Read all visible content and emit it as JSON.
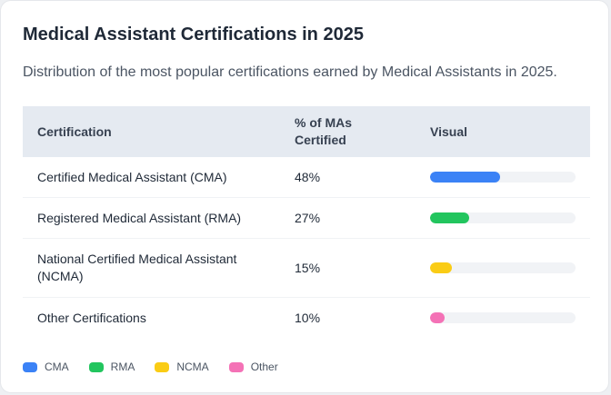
{
  "title": "Medical Assistant Certifications in 2025",
  "subtitle": "Distribution of the most popular certifications earned by Medical Assistants in 2025.",
  "columns": {
    "certification": "Certification",
    "percent_line1": "% of MAs",
    "percent_line2": "Certified",
    "visual": "Visual"
  },
  "colors": {
    "cma": "#3b82f6",
    "rma": "#22c55e",
    "ncma": "#facc15",
    "other": "#f472b6"
  },
  "rows": [
    {
      "name": "Certified Medical Assistant (CMA)",
      "percent_label": "48%",
      "value": 48,
      "color_key": "cma"
    },
    {
      "name": "Registered Medical Assistant (RMA)",
      "percent_label": "27%",
      "value": 27,
      "color_key": "rma"
    },
    {
      "name": "National Certified Medical Assistant (NCMA)",
      "percent_label": "15%",
      "value": 15,
      "color_key": "ncma"
    },
    {
      "name": "Other Certifications",
      "percent_label": "10%",
      "value": 10,
      "color_key": "other"
    }
  ],
  "legend": [
    {
      "label": "CMA",
      "color_key": "cma"
    },
    {
      "label": "RMA",
      "color_key": "rma"
    },
    {
      "label": "NCMA",
      "color_key": "ncma"
    },
    {
      "label": "Other",
      "color_key": "other"
    }
  ],
  "chart_data": {
    "type": "bar",
    "title": "Medical Assistant Certifications in 2025",
    "subtitle": "Distribution of the most popular certifications earned by Medical Assistants in 2025.",
    "categories": [
      "Certified Medical Assistant (CMA)",
      "Registered Medical Assistant (RMA)",
      "National Certified Medical Assistant (NCMA)",
      "Other Certifications"
    ],
    "values": [
      48,
      27,
      15,
      10
    ],
    "unit": "%",
    "xlim": [
      0,
      100
    ],
    "legend": [
      "CMA",
      "RMA",
      "NCMA",
      "Other"
    ],
    "legend_position": "bottom-left",
    "grid": false
  }
}
